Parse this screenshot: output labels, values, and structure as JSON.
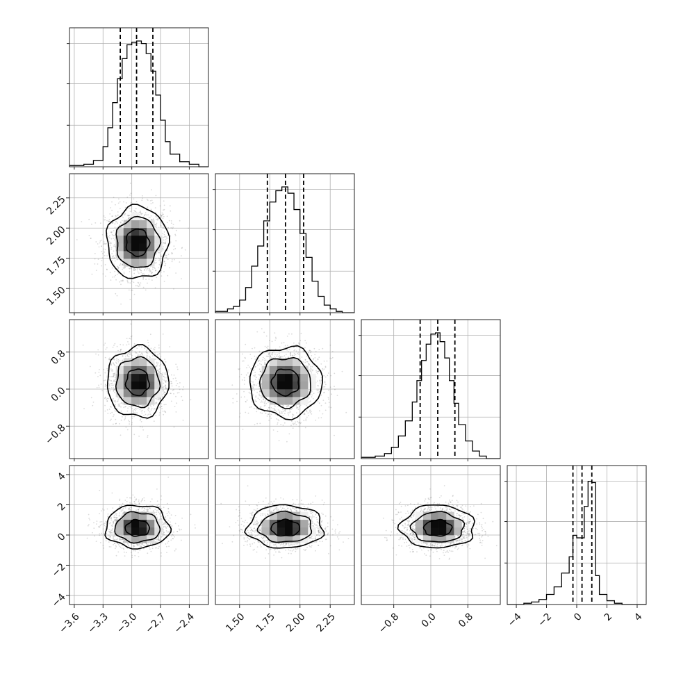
{
  "chart_data": {
    "type": "corner",
    "title": "",
    "grid": true,
    "parameters": [
      {
        "mean": -2.94,
        "std": 0.16,
        "range": [
          -3.65,
          -2.2
        ],
        "ticks": [
          -3.6,
          -3.3,
          -3.0,
          -2.7,
          -2.4
        ],
        "tick_labels": [
          "−3.6",
          "−3.3",
          "−3.0",
          "−2.7",
          "−2.4"
        ],
        "quantiles": [
          -3.12,
          -2.95,
          -2.78
        ]
      },
      {
        "mean": 1.88,
        "std": 0.15,
        "range": [
          1.3,
          2.45
        ],
        "ticks": [
          1.5,
          1.75,
          2.0,
          2.25
        ],
        "tick_labels": [
          "1.50",
          "1.75",
          "2.00",
          "2.25"
        ],
        "quantiles": [
          1.73,
          1.88,
          2.03
        ]
      },
      {
        "mean": 0.15,
        "std": 0.38,
        "range": [
          -1.5,
          1.5
        ],
        "ticks": [
          -0.8,
          0.0,
          0.8
        ],
        "tick_labels": [
          "−0.8",
          "0.0",
          "0.8"
        ],
        "quantiles": [
          -0.23,
          0.15,
          0.52
        ]
      },
      {
        "mean": 0.6,
        "std": 0.9,
        "range": [
          -4.6,
          4.6
        ],
        "ticks": [
          -4,
          -2,
          0,
          2,
          4
        ],
        "tick_labels": [
          "−4",
          "−2",
          "0",
          "2",
          "4"
        ],
        "quantiles": [
          -0.25,
          0.35,
          1.0
        ]
      }
    ],
    "histograms": [
      {
        "param": 0,
        "edges": [
          -3.65,
          -3.5,
          -3.4,
          -3.3,
          -3.25,
          -3.2,
          -3.15,
          -3.1,
          -3.05,
          -3.0,
          -2.95,
          -2.9,
          -2.85,
          -2.8,
          -2.75,
          -2.7,
          -2.65,
          -2.6,
          -2.5,
          -2.4,
          -2.3,
          -2.2
        ],
        "counts": [
          0.01,
          0.02,
          0.05,
          0.16,
          0.31,
          0.51,
          0.7,
          0.86,
          0.97,
          0.99,
          1.0,
          0.98,
          0.9,
          0.76,
          0.57,
          0.37,
          0.2,
          0.1,
          0.04,
          0.02,
          0.0
        ],
        "ticks": [
          0.33,
          0.66,
          0.98
        ]
      },
      {
        "param": 1,
        "edges": [
          1.3,
          1.4,
          1.45,
          1.5,
          1.55,
          1.6,
          1.65,
          1.7,
          1.75,
          1.8,
          1.85,
          1.9,
          1.95,
          2.0,
          2.05,
          2.1,
          2.15,
          2.2,
          2.25,
          2.3,
          2.35,
          2.45
        ],
        "counts": [
          0.01,
          0.03,
          0.05,
          0.1,
          0.2,
          0.37,
          0.53,
          0.73,
          0.88,
          0.97,
          1.0,
          0.95,
          0.82,
          0.63,
          0.44,
          0.25,
          0.13,
          0.06,
          0.03,
          0.01,
          0.0
        ],
        "ticks": [
          0.33,
          0.66,
          0.98
        ]
      },
      {
        "param": 2,
        "edges": [
          -1.5,
          -1.2,
          -1.0,
          -0.85,
          -0.7,
          -0.55,
          -0.4,
          -0.3,
          -0.2,
          -0.1,
          0.0,
          0.1,
          0.2,
          0.3,
          0.4,
          0.5,
          0.6,
          0.75,
          0.9,
          1.05,
          1.2,
          1.5
        ],
        "counts": [
          0.01,
          0.02,
          0.04,
          0.09,
          0.18,
          0.3,
          0.45,
          0.62,
          0.78,
          0.91,
          0.99,
          1.0,
          0.93,
          0.8,
          0.62,
          0.44,
          0.27,
          0.14,
          0.06,
          0.02,
          0.0
        ],
        "ticks": [
          0.33,
          0.66,
          0.98
        ]
      },
      {
        "param": 3,
        "edges": [
          -4.6,
          -3.5,
          -3.0,
          -2.5,
          -2.0,
          -1.5,
          -1.0,
          -0.5,
          -0.25,
          0.0,
          0.5,
          0.75,
          1.0,
          1.25,
          1.5,
          2.0,
          2.5,
          3.0,
          4.6
        ],
        "counts": [
          0.0,
          0.01,
          0.02,
          0.04,
          0.08,
          0.14,
          0.25,
          0.38,
          0.55,
          0.53,
          0.78,
          0.98,
          0.97,
          0.23,
          0.08,
          0.03,
          0.01,
          0.0
        ],
        "ticks": [
          0.33,
          0.66,
          0.98
        ]
      }
    ],
    "pairs": [
      {
        "x": 0,
        "y": 1,
        "center": [
          -2.94,
          1.88
        ],
        "spread": [
          0.16,
          0.15
        ],
        "flatten": 0.0,
        "peaks": [
          [
            -3.0,
            1.89
          ],
          [
            -2.97,
            1.87
          ],
          [
            -2.92,
            1.87
          ]
        ]
      },
      {
        "x": 0,
        "y": 2,
        "center": [
          -2.94,
          0.15
        ],
        "spread": [
          0.16,
          0.38
        ],
        "flatten": 0.0,
        "peaks": [
          [
            -2.9,
            0.1
          ],
          [
            -2.88,
            0.15
          ]
        ]
      },
      {
        "x": 1,
        "y": 2,
        "center": [
          1.88,
          0.15
        ],
        "spread": [
          0.15,
          0.38
        ],
        "flatten": 0.0,
        "peaks": [
          [
            1.9,
            0.1
          ],
          [
            1.87,
            0.2
          ]
        ]
      },
      {
        "x": 0,
        "y": 3,
        "center": [
          -2.94,
          0.4
        ],
        "spread": [
          0.16,
          0.8
        ],
        "flatten": 1.0,
        "peaks": [
          [
            -3.05,
            0.85
          ],
          [
            -2.95,
            0.85
          ],
          [
            -2.9,
            0.4
          ]
        ]
      },
      {
        "x": 1,
        "y": 3,
        "center": [
          1.88,
          0.4
        ],
        "spread": [
          0.15,
          0.8
        ],
        "flatten": 1.0,
        "peaks": [
          [
            1.85,
            0.85
          ],
          [
            1.92,
            0.85
          ],
          [
            1.92,
            0.4
          ]
        ]
      },
      {
        "x": 2,
        "y": 3,
        "center": [
          0.15,
          0.4
        ],
        "spread": [
          0.38,
          0.8
        ],
        "flatten": 1.0,
        "peaks": [
          [
            0.05,
            0.85
          ],
          [
            0.2,
            0.85
          ],
          [
            0.25,
            0.4
          ]
        ]
      }
    ],
    "contour_levels": [
      0.39,
      0.86,
      0.99
    ],
    "colors": {
      "points": "#7a7a7a",
      "density": "#000000",
      "lines": "#000000",
      "grid": "#b0b0b0"
    }
  }
}
